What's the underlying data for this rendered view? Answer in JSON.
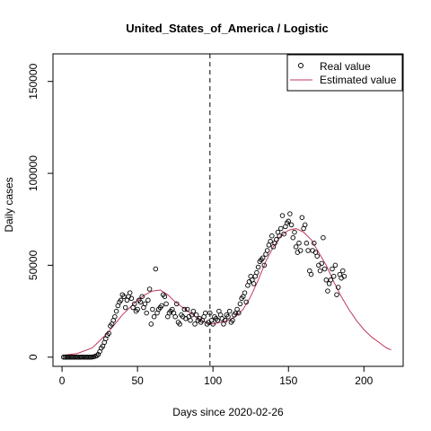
{
  "chart_data": {
    "type": "scatter",
    "title": "United_States_of_America / Logistic",
    "xlabel": "Days since 2020-02-26",
    "ylabel": "Daily cases",
    "xlim": [
      -6,
      226
    ],
    "ylim": [
      -5000,
      165000
    ],
    "xticks": [
      0,
      50,
      100,
      150,
      200
    ],
    "yticks": [
      0,
      50000,
      100000,
      150000
    ],
    "xtick_labels": [
      "0",
      "50",
      "100",
      "150",
      "200"
    ],
    "ytick_labels": [
      "0",
      "50000",
      "100000",
      "150000"
    ],
    "vline_x": 98,
    "legend": {
      "position": "top-right",
      "entries": [
        {
          "label": "Real value",
          "marker": "circle",
          "color": "#000000"
        },
        {
          "label": "Estimated value",
          "marker": "line",
          "color": "#c0395a"
        }
      ]
    },
    "series": [
      {
        "name": "Real value",
        "kind": "points",
        "color": "#000000",
        "x": [
          1,
          2,
          3,
          4,
          5,
          6,
          7,
          8,
          9,
          10,
          11,
          12,
          13,
          14,
          15,
          16,
          17,
          18,
          19,
          20,
          21,
          22,
          23,
          24,
          25,
          26,
          27,
          28,
          29,
          30,
          31,
          32,
          33,
          34,
          35,
          36,
          37,
          38,
          39,
          40,
          41,
          42,
          43,
          44,
          45,
          46,
          47,
          48,
          49,
          50,
          51,
          52,
          53,
          54,
          55,
          56,
          57,
          58,
          59,
          60,
          61,
          62,
          63,
          64,
          65,
          66,
          67,
          68,
          69,
          70,
          71,
          72,
          73,
          74,
          75,
          76,
          77,
          78,
          79,
          80,
          81,
          82,
          83,
          84,
          85,
          86,
          87,
          88,
          89,
          90,
          91,
          92,
          93,
          94,
          95,
          96,
          97,
          98,
          99,
          100,
          101,
          102,
          103,
          104,
          105,
          106,
          107,
          108,
          109,
          110,
          111,
          112,
          113,
          114,
          115,
          116,
          117,
          118,
          119,
          120,
          121,
          122,
          123,
          124,
          125,
          126,
          127,
          128,
          129,
          130,
          131,
          132,
          133,
          134,
          135,
          136,
          137,
          138,
          139,
          140,
          141,
          142,
          143,
          144,
          145,
          146,
          147,
          148,
          149,
          150,
          151,
          152,
          153,
          154,
          155,
          156,
          157,
          158,
          159,
          160,
          161,
          162,
          163,
          164,
          165,
          166,
          167,
          168,
          169,
          170,
          171,
          172,
          173,
          174,
          175,
          176,
          177,
          178,
          179,
          180,
          181,
          182,
          183,
          184,
          185,
          186,
          187
        ],
        "y": [
          0,
          0,
          0,
          0,
          0,
          0,
          0,
          0,
          0,
          0,
          0,
          0,
          0,
          0,
          0,
          0,
          0,
          0,
          0,
          100,
          300,
          500,
          800,
          1500,
          3000,
          5000,
          6000,
          8000,
          10000,
          12000,
          13000,
          17000,
          18000,
          20000,
          22000,
          25000,
          28000,
          30000,
          31000,
          34000,
          33000,
          27000,
          31000,
          33000,
          35000,
          32000,
          27000,
          29000,
          25000,
          26000,
          31000,
          30000,
          33000,
          27000,
          29000,
          24000,
          31000,
          37000,
          18000,
          26000,
          22000,
          48000,
          24000,
          26000,
          27000,
          28000,
          34000,
          33000,
          29000,
          22000,
          24000,
          25000,
          26000,
          24000,
          22000,
          29000,
          19000,
          18000,
          23000,
          22000,
          26000,
          21000,
          26000,
          22000,
          20000,
          23000,
          25000,
          18000,
          23000,
          20000,
          21000,
          19000,
          20000,
          22000,
          24000,
          18000,
          19000,
          24000,
          20000,
          18000,
          22000,
          21000,
          20000,
          25000,
          23000,
          21000,
          18000,
          20000,
          23000,
          22000,
          25000,
          19000,
          20000,
          23000,
          24000,
          26000,
          24000,
          29000,
          32000,
          33000,
          35000,
          30000,
          39000,
          41000,
          44000,
          42000,
          40000,
          44000,
          46000,
          49000,
          52000,
          53000,
          54000,
          50000,
          56000,
          58000,
          61000,
          63000,
          66000,
          60000,
          62000,
          64000,
          68000,
          66000,
          70000,
          77000,
          67000,
          71000,
          73000,
          74000,
          78000,
          72000,
          65000,
          68000,
          60000,
          57000,
          62000,
          58000,
          76000,
          70000,
          72000,
          62000,
          58000,
          47000,
          45000,
          58000,
          62000,
          57000,
          55000,
          50000,
          47000,
          51000,
          65000,
          48000,
          42000,
          36000,
          40000,
          42000,
          48000,
          44000,
          50000,
          34000,
          38000,
          45000,
          43000,
          47000,
          44000
        ],
        "note_unlabeled": ""
      },
      {
        "name": "Estimated value",
        "kind": "line",
        "color": "#c0395a",
        "x": [
          0,
          10,
          20,
          30,
          40,
          50,
          55,
          60,
          65,
          70,
          75,
          80,
          85,
          90,
          95,
          100,
          105,
          110,
          115,
          120,
          125,
          130,
          135,
          140,
          145,
          150,
          155,
          160,
          165,
          170,
          175,
          180,
          185,
          190,
          195,
          200,
          205,
          210,
          215,
          218
        ],
        "y": [
          1000,
          2000,
          5000,
          13000,
          23000,
          31000,
          34000,
          36000,
          36500,
          34000,
          30000,
          27000,
          24000,
          21000,
          19000,
          18000,
          19000,
          20000,
          22000,
          26000,
          33000,
          42000,
          52000,
          60000,
          66000,
          69000,
          70000,
          68000,
          64000,
          57000,
          50000,
          41000,
          33000,
          26000,
          20000,
          15000,
          11000,
          8000,
          5000,
          4000
        ]
      }
    ]
  }
}
